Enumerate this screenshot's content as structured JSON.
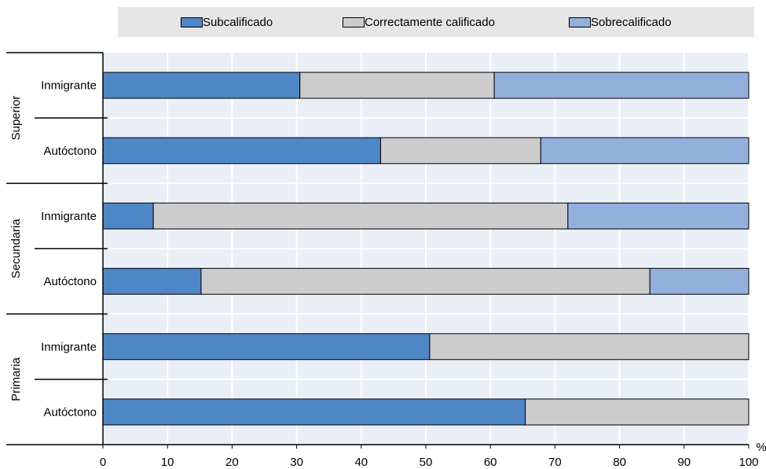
{
  "chart_data": {
    "type": "bar",
    "orientation": "horizontal",
    "stacked": true,
    "xlim": [
      0,
      100
    ],
    "x_ticks": [
      "0",
      "10",
      "20",
      "30",
      "40",
      "50",
      "60",
      "70",
      "80",
      "90",
      "100"
    ],
    "x_unit": "%",
    "grid": true,
    "legend_position": "top",
    "groups": [
      {
        "label": "Superior",
        "categories": [
          "Inmigrante",
          "Autóctono"
        ]
      },
      {
        "label": "Secundaria",
        "categories": [
          "Inmigrante",
          "Autóctono"
        ]
      },
      {
        "label": "Primaria",
        "categories": [
          "Inmigrante",
          "Autóctono"
        ]
      }
    ],
    "categories": [
      "Inmigrante",
      "Autóctono",
      "Inmigrante",
      "Autóctono",
      "Inmigrante",
      "Autóctono"
    ],
    "series": [
      {
        "name": "Subcalificado",
        "color": "#4f86c6",
        "values": [
          30.5,
          43.0,
          7.8,
          15.2,
          50.6,
          65.4
        ]
      },
      {
        "name": "Correctamente calificado",
        "color": "#cccccc",
        "values": [
          30.1,
          24.8,
          64.2,
          69.5,
          49.4,
          34.6
        ]
      },
      {
        "name": "Sobrecalificado",
        "color": "#93b0dd",
        "values": [
          39.4,
          32.2,
          28.0,
          15.3,
          0,
          0
        ]
      }
    ]
  }
}
